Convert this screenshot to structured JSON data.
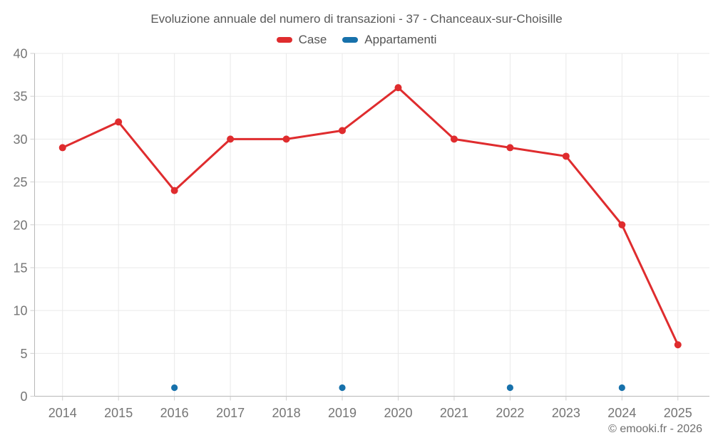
{
  "page": {
    "title": "Evoluzione annuale del numero di transazioni - 37 - Chanceaux-sur-Choisille",
    "footer_credit": "© emooki.fr - 2026"
  },
  "legend": {
    "items": [
      {
        "label": "Case",
        "color": "#df2c2e"
      },
      {
        "label": "Appartamenti",
        "color": "#1771ab"
      }
    ]
  },
  "chart_data": {
    "type": "line",
    "title": "Evoluzione annuale del numero di transazioni - 37 - Chanceaux-sur-Choisille",
    "categories": [
      "2014",
      "2015",
      "2016",
      "2017",
      "2018",
      "2019",
      "2020",
      "2021",
      "2022",
      "2023",
      "2024",
      "2025"
    ],
    "series": [
      {
        "name": "Case",
        "color": "#df2c2e",
        "style": "line-with-points",
        "values": [
          29,
          32,
          24,
          30,
          30,
          31,
          36,
          30,
          29,
          28,
          20,
          6
        ]
      },
      {
        "name": "Appartamenti",
        "color": "#1771ab",
        "style": "points-only",
        "values": [
          null,
          null,
          1,
          null,
          null,
          1,
          null,
          null,
          1,
          null,
          1,
          null
        ]
      }
    ],
    "ylim": [
      0,
      40
    ],
    "yticks": [
      0,
      5,
      10,
      15,
      20,
      25,
      30,
      35,
      40
    ],
    "grid": true,
    "legend_position": "top",
    "xlabel": "",
    "ylabel": ""
  },
  "style": {
    "background": "#ffffff",
    "grid_color": "#e9e9e9",
    "axis_color": "#b8b8b8",
    "tick_color": "#cfcfcf",
    "tick_label_color": "#757575",
    "title_color": "#595959",
    "legend_text_color": "#545454",
    "footer_color": "#6f6f6f"
  }
}
